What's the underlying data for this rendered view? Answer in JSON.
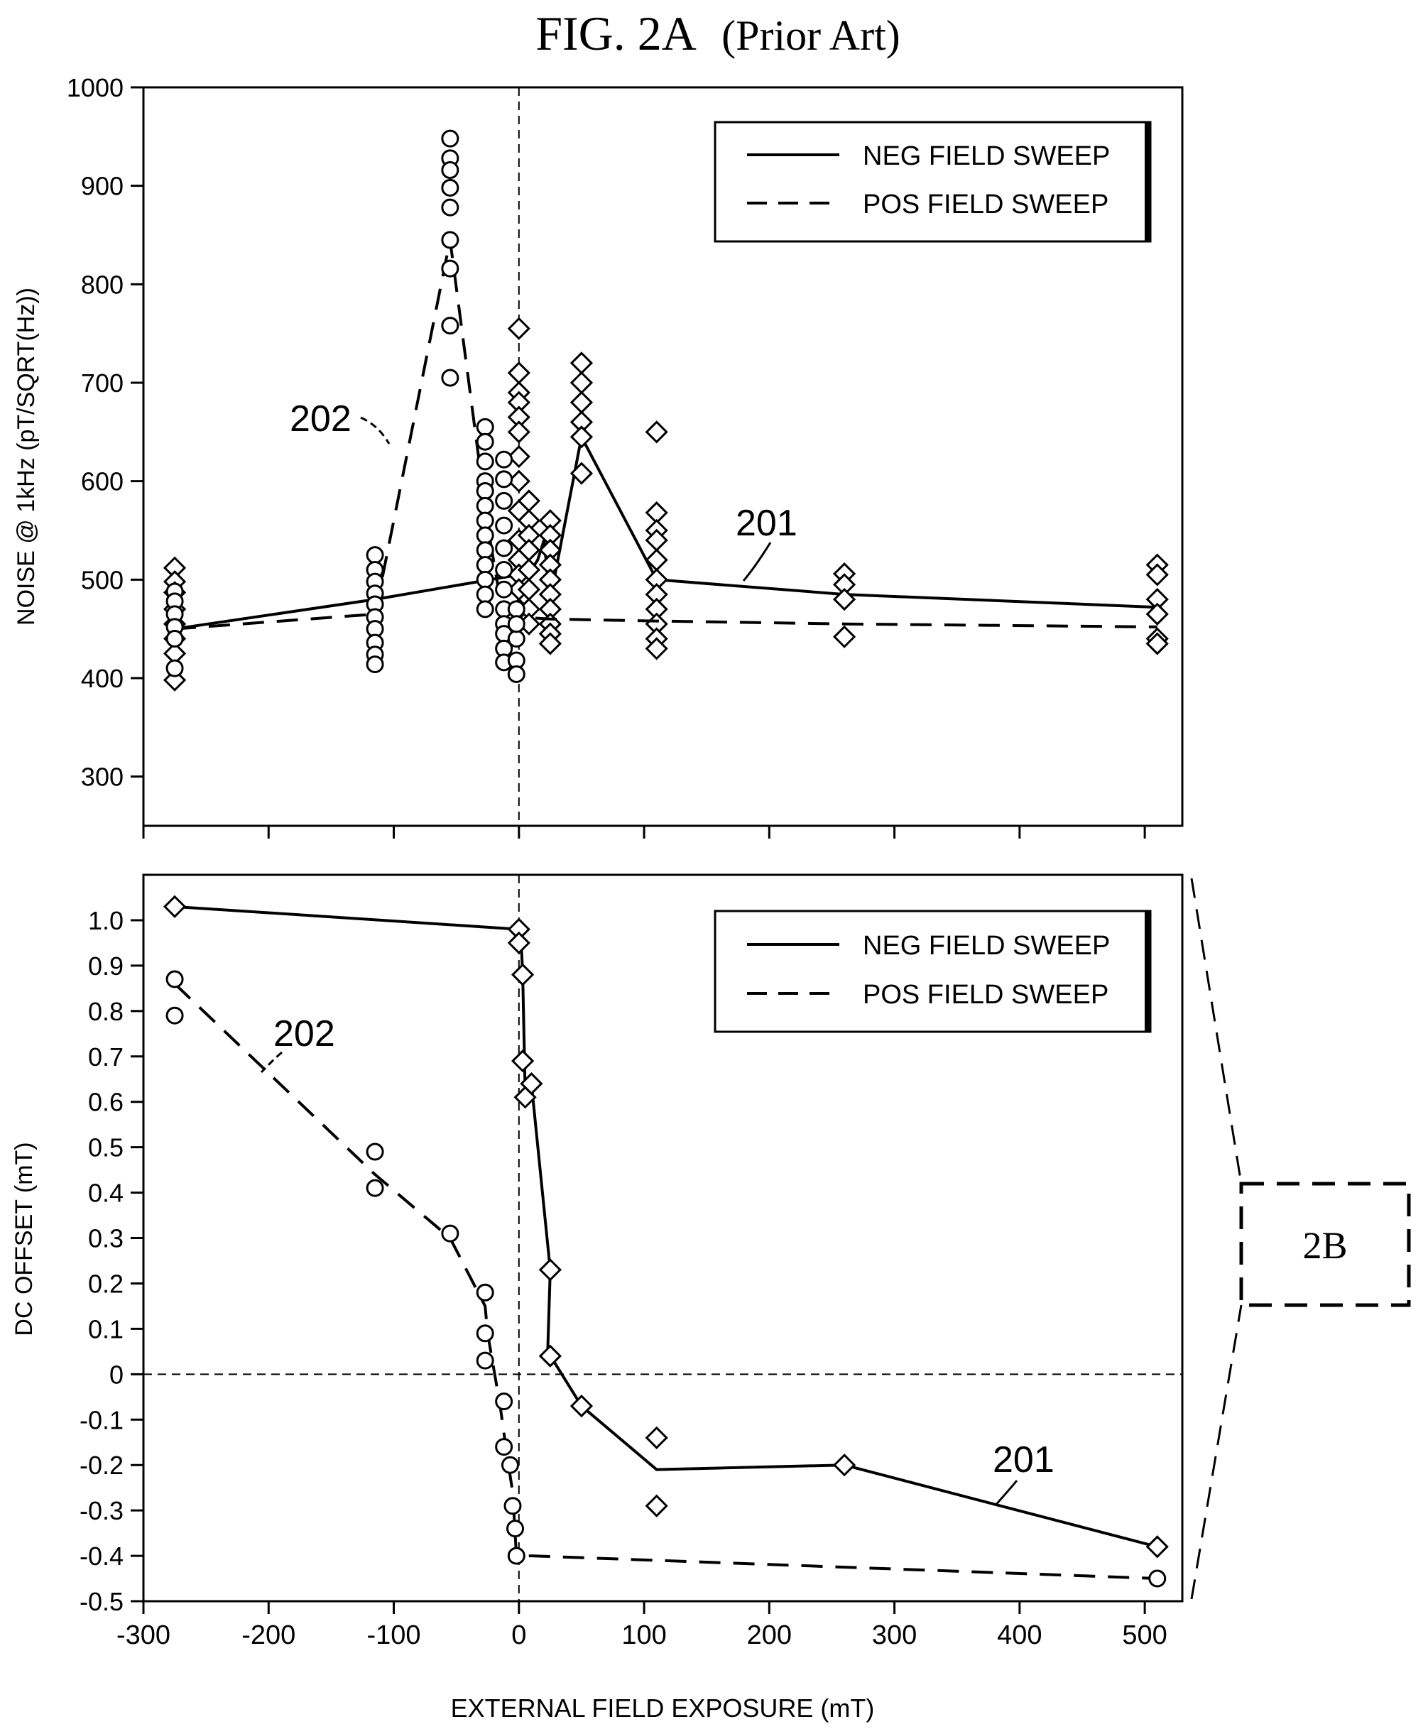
{
  "figure": {
    "title": "FIG. 2A",
    "title_suffix": "(Prior Art)",
    "inset_label": "2B"
  },
  "chart_data": [
    {
      "type": "line",
      "xlabel": "",
      "ylabel": "NOISE @ 1kHz (pT/SQRT(Hz))",
      "xlim": [
        -300,
        530
      ],
      "ylim": [
        250,
        1000
      ],
      "xticks": [
        -300,
        -200,
        -100,
        0,
        100,
        200,
        300,
        400,
        500
      ],
      "yticks": [
        300,
        400,
        500,
        600,
        700,
        800,
        900,
        1000
      ],
      "ytick_labels": [
        "300",
        "400",
        "500",
        "600",
        "700",
        "800",
        "900",
        "1000"
      ],
      "xtick_labels": [],
      "zero_vline": true,
      "legend_position": "top-right",
      "legend": [
        {
          "label": "NEG FIELD SWEEP",
          "style": "solid"
        },
        {
          "label": "POS FIELD SWEEP",
          "style": "dashed"
        }
      ],
      "series": [
        {
          "name": "NEG FIELD SWEEP",
          "marker": "diamond",
          "style": "solid",
          "ref_label": "201",
          "x": [
            -275,
            -115,
            0,
            5,
            10,
            15,
            20,
            25,
            50,
            110,
            260,
            510
          ],
          "y": [
            450,
            480,
            505,
            508,
            510,
            520,
            540,
            480,
            645,
            500,
            485,
            472
          ],
          "points": [
            [
              -275,
              512
            ],
            [
              -275,
              498
            ],
            [
              -275,
              487
            ],
            [
              -275,
              470
            ],
            [
              -275,
              455
            ],
            [
              -275,
              440
            ],
            [
              -275,
              425
            ],
            [
              -275,
              398
            ],
            [
              0,
              755
            ],
            [
              0,
              710
            ],
            [
              0,
              690
            ],
            [
              0,
              680
            ],
            [
              0,
              665
            ],
            [
              0,
              650
            ],
            [
              0,
              625
            ],
            [
              0,
              600
            ],
            [
              0,
              570
            ],
            [
              0,
              540
            ],
            [
              0,
              520
            ],
            [
              0,
              505
            ],
            [
              0,
              490
            ],
            [
              0,
              470
            ],
            [
              8,
              580
            ],
            [
              8,
              560
            ],
            [
              8,
              545
            ],
            [
              8,
              530
            ],
            [
              8,
              510
            ],
            [
              8,
              490
            ],
            [
              8,
              470
            ],
            [
              8,
              455
            ],
            [
              25,
              560
            ],
            [
              25,
              545
            ],
            [
              25,
              530
            ],
            [
              25,
              515
            ],
            [
              25,
              500
            ],
            [
              25,
              485
            ],
            [
              25,
              470
            ],
            [
              25,
              455
            ],
            [
              25,
              445
            ],
            [
              25,
              435
            ],
            [
              50,
              720
            ],
            [
              50,
              700
            ],
            [
              50,
              680
            ],
            [
              50,
              660
            ],
            [
              50,
              645
            ],
            [
              50,
              608
            ],
            [
              110,
              650
            ],
            [
              110,
              568
            ],
            [
              110,
              550
            ],
            [
              110,
              540
            ],
            [
              110,
              520
            ],
            [
              110,
              500
            ],
            [
              110,
              485
            ],
            [
              110,
              470
            ],
            [
              110,
              455
            ],
            [
              110,
              440
            ],
            [
              110,
              430
            ],
            [
              260,
              506
            ],
            [
              260,
              495
            ],
            [
              260,
              480
            ],
            [
              260,
              442
            ],
            [
              510,
              515
            ],
            [
              510,
              505
            ],
            [
              510,
              480
            ],
            [
              510,
              465
            ],
            [
              510,
              440
            ],
            [
              510,
              435
            ]
          ]
        },
        {
          "name": "POS FIELD SWEEP",
          "marker": "circle",
          "style": "dashed",
          "ref_label": "202",
          "x": [
            -275,
            -115,
            -55,
            -25,
            -15,
            -10,
            -5,
            0,
            25,
            110,
            260,
            510
          ],
          "y": [
            450,
            465,
            845,
            555,
            480,
            470,
            465,
            462,
            460,
            458,
            455,
            452
          ],
          "points": [
            [
              -275,
              488
            ],
            [
              -275,
              478
            ],
            [
              -275,
              465
            ],
            [
              -275,
              452
            ],
            [
              -275,
              440
            ],
            [
              -275,
              410
            ],
            [
              -115,
              525
            ],
            [
              -115,
              510
            ],
            [
              -115,
              498
            ],
            [
              -115,
              486
            ],
            [
              -115,
              475
            ],
            [
              -115,
              462
            ],
            [
              -115,
              450
            ],
            [
              -115,
              436
            ],
            [
              -115,
              424
            ],
            [
              -115,
              414
            ],
            [
              -55,
              948
            ],
            [
              -55,
              928
            ],
            [
              -55,
              916
            ],
            [
              -55,
              898
            ],
            [
              -55,
              878
            ],
            [
              -55,
              845
            ],
            [
              -55,
              816
            ],
            [
              -55,
              758
            ],
            [
              -55,
              705
            ],
            [
              -27,
              655
            ],
            [
              -27,
              640
            ],
            [
              -27,
              620
            ],
            [
              -27,
              600
            ],
            [
              -27,
              590
            ],
            [
              -27,
              575
            ],
            [
              -27,
              560
            ],
            [
              -27,
              545
            ],
            [
              -27,
              530
            ],
            [
              -27,
              515
            ],
            [
              -27,
              500
            ],
            [
              -27,
              485
            ],
            [
              -27,
              470
            ],
            [
              -12,
              622
            ],
            [
              -12,
              602
            ],
            [
              -12,
              580
            ],
            [
              -12,
              555
            ],
            [
              -12,
              532
            ],
            [
              -12,
              510
            ],
            [
              -12,
              490
            ],
            [
              -12,
              470
            ],
            [
              -12,
              455
            ],
            [
              -12,
              445
            ],
            [
              -12,
              430
            ],
            [
              -12,
              416
            ],
            [
              -2,
              470
            ],
            [
              -2,
              440
            ],
            [
              -2,
              418
            ],
            [
              -2,
              404
            ],
            [
              -2,
              455
            ]
          ]
        }
      ]
    },
    {
      "type": "line",
      "xlabel": "EXTERNAL FIELD EXPOSURE (mT)",
      "ylabel": "DC OFFSET (mT)",
      "xlim": [
        -300,
        530
      ],
      "ylim": [
        -0.5,
        1.1
      ],
      "xticks": [
        -300,
        -200,
        -100,
        0,
        100,
        200,
        300,
        400,
        500
      ],
      "xtick_labels": [
        "-300",
        "-200",
        "-100",
        "0",
        "100",
        "200",
        "300",
        "400",
        "500"
      ],
      "yticks": [
        -0.5,
        -0.4,
        -0.3,
        -0.2,
        -0.1,
        0,
        0.1,
        0.2,
        0.3,
        0.4,
        0.5,
        0.6,
        0.7,
        0.8,
        0.9,
        1.0
      ],
      "ytick_labels": [
        "-0.5",
        "-0.4",
        "-0.3",
        "-0.2",
        "-0.1",
        "0",
        "0.1",
        "0.2",
        "0.3",
        "0.4",
        "0.5",
        "0.6",
        "0.7",
        "0.8",
        "0.9",
        "1.0"
      ],
      "zero_vline": true,
      "zero_hline": true,
      "legend_position": "top-right",
      "legend": [
        {
          "label": "NEG FIELD SWEEP",
          "style": "solid"
        },
        {
          "label": "POS FIELD SWEEP",
          "style": "dashed"
        }
      ],
      "series": [
        {
          "name": "NEG FIELD SWEEP",
          "marker": "diamond",
          "style": "solid",
          "ref_label": "201",
          "x": [
            -275,
            0,
            2,
            3,
            5,
            10,
            25,
            23,
            50,
            110,
            260,
            510
          ],
          "y": [
            1.03,
            0.98,
            0.94,
            0.88,
            0.62,
            0.64,
            0.23,
            0.05,
            -0.07,
            -0.21,
            -0.2,
            -0.38
          ],
          "points": [
            [
              -275,
              1.03
            ],
            [
              0,
              0.98
            ],
            [
              0,
              0.95
            ],
            [
              3,
              0.88
            ],
            [
              3,
              0.69
            ],
            [
              5,
              0.61
            ],
            [
              10,
              0.64
            ],
            [
              25,
              0.23
            ],
            [
              25,
              0.04
            ],
            [
              50,
              -0.07
            ],
            [
              110,
              -0.14
            ],
            [
              110,
              -0.29
            ],
            [
              260,
              -0.2
            ],
            [
              510,
              -0.38
            ]
          ]
        },
        {
          "name": "POS FIELD SWEEP",
          "marker": "circle",
          "style": "dashed",
          "ref_label": "202",
          "x": [
            -275,
            -115,
            -55,
            -27,
            -25,
            -15,
            -10,
            -5,
            -2,
            10,
            510
          ],
          "y": [
            0.86,
            0.44,
            0.3,
            0.15,
            0.09,
            -0.07,
            -0.17,
            -0.26,
            -0.4,
            -0.4,
            -0.45
          ],
          "points": [
            [
              -275,
              0.87
            ],
            [
              -275,
              0.79
            ],
            [
              -115,
              0.49
            ],
            [
              -115,
              0.41
            ],
            [
              -55,
              0.31
            ],
            [
              -27,
              0.18
            ],
            [
              -27,
              0.09
            ],
            [
              -27,
              0.03
            ],
            [
              -12,
              -0.06
            ],
            [
              -12,
              -0.16
            ],
            [
              -7,
              -0.2
            ],
            [
              -5,
              -0.29
            ],
            [
              -3,
              -0.34
            ],
            [
              -2,
              -0.4
            ],
            [
              510,
              -0.45
            ]
          ]
        }
      ]
    }
  ]
}
